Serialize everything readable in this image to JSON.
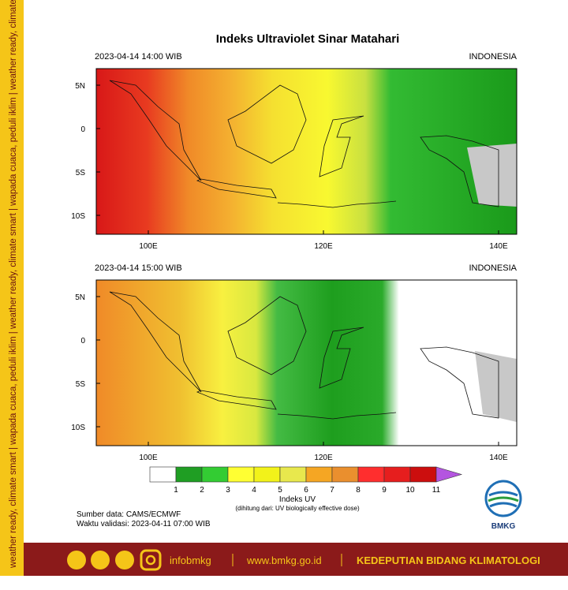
{
  "side_strip": "weather ready, climate smart | wapada cuaca, peduli iklim | weather ready, climate smart | wapada cuaca, peduli iklim | weather ready, climate smart | wapada cuaca, peduli iklim",
  "title": "Indeks Ultraviolet Sinar Matahari",
  "panels": [
    {
      "time": "2023-04-14  14:00 WIB",
      "region": "INDONESIA"
    },
    {
      "time": "2023-04-14  15:00 WIB",
      "region": "INDONESIA"
    }
  ],
  "lat_labels": [
    "5N",
    "0",
    "5S",
    "10S"
  ],
  "lon_labels": [
    "100E",
    "120E",
    "140E"
  ],
  "colorbar": {
    "labels": [
      1,
      2,
      3,
      4,
      5,
      6,
      7,
      8,
      9,
      10,
      11
    ],
    "colors": [
      "#ffffff",
      "#1f9e23",
      "#33cc33",
      "#ffff33",
      "#f2f21a",
      "#e8e84d",
      "#f5a623",
      "#ea8f2e",
      "#ff2e2e",
      "#e61e1e",
      "#cc0e0e",
      "#b455e0"
    ],
    "title": "Indeks UV",
    "subtitle": "(dihitung dari: UV biologically effective dose)"
  },
  "source": "Sumber data: CAMS/ECMWF",
  "validity": "Waktu validasi: 2023-04-11 07:00 WIB",
  "logo": "BMKG",
  "footer": {
    "handle": "infobmkg",
    "website": "www.bmkg.go.id",
    "department": "KEDEPUTIAN BIDANG KLIMATOLOGI"
  }
}
